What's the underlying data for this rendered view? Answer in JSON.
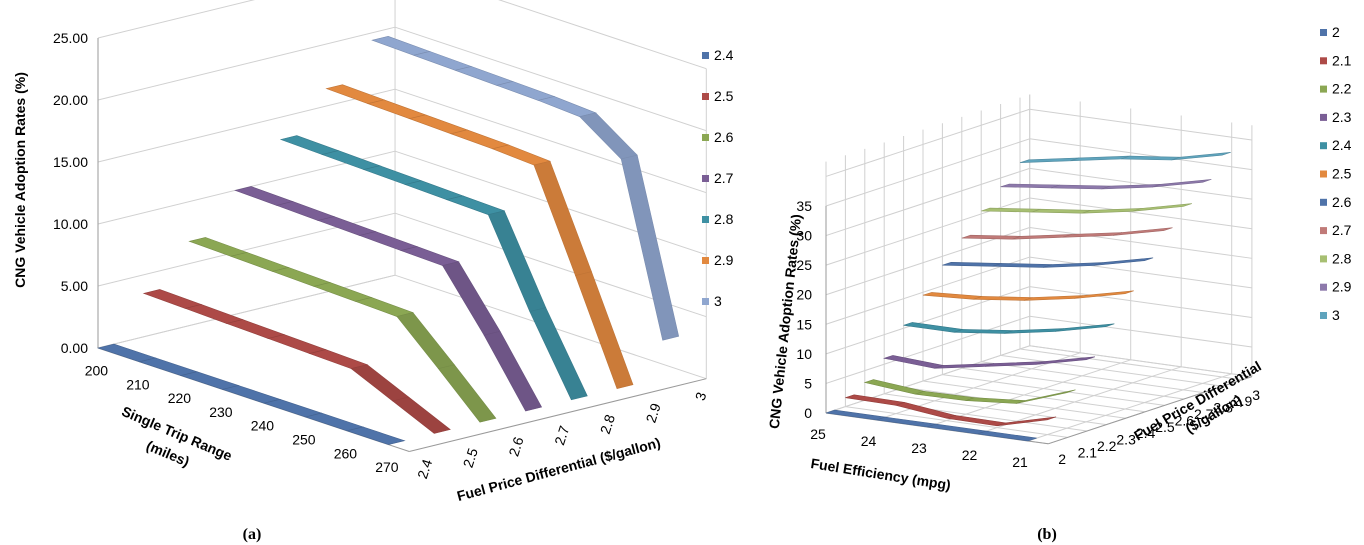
{
  "chart_data": [
    {
      "panel": "(a)",
      "type": "line",
      "subtype": "3d-ribbon",
      "title": "",
      "ylabel": "CNG Vehicle Adoption Rates (%)",
      "xlabel": "Single Trip Range\n(miles)",
      "zlabel": "Fuel Price Differential ($/gallon)",
      "x": [
        200,
        210,
        220,
        230,
        240,
        250,
        260,
        270
      ],
      "x_tick_labels": [
        "200",
        "210",
        "220",
        "230",
        "240",
        "250",
        "260",
        "270"
      ],
      "z_tick_labels": [
        "2.4",
        "2.5",
        "2.6",
        "2.7",
        "2.8",
        "2.9",
        "3"
      ],
      "y_tick_labels": [
        "0.00",
        "5.00",
        "10.00",
        "15.00",
        "20.00",
        "25.00"
      ],
      "ylim": [
        0,
        25
      ],
      "grid": true,
      "legend_position": "right",
      "series": [
        {
          "name": "2.4",
          "color": "#4f73a9",
          "values": [
            0,
            0,
            0,
            0,
            0,
            0,
            0,
            0
          ]
        },
        {
          "name": "2.5",
          "color": "#ad4a47",
          "values": [
            3.5,
            3.4,
            3.3,
            3.2,
            3.1,
            3.0,
            1.5,
            0
          ]
        },
        {
          "name": "2.6",
          "color": "#8ba753",
          "values": [
            6.8,
            6.7,
            6.6,
            6.5,
            6.4,
            6.3,
            3.2,
            0
          ]
        },
        {
          "name": "2.7",
          "color": "#7a5e95",
          "values": [
            10.0,
            9.9,
            9.8,
            9.7,
            9.6,
            9.5,
            5.0,
            0
          ]
        },
        {
          "name": "2.8",
          "color": "#3e90a3",
          "values": [
            13.2,
            13.1,
            13.0,
            12.9,
            12.8,
            12.7,
            6.0,
            0
          ]
        },
        {
          "name": "2.9",
          "color": "#e2893f",
          "values": [
            16.4,
            16.3,
            16.2,
            16.1,
            16.0,
            15.8,
            8.0,
            0
          ]
        },
        {
          "name": "3",
          "color": "#8fa6cf",
          "values": [
            19.4,
            19.3,
            19.2,
            19.1,
            19.0,
            18.8,
            16.5,
            3.0
          ]
        }
      ]
    },
    {
      "panel": "(b)",
      "type": "line",
      "subtype": "3d-ribbon",
      "title": "",
      "ylabel": "CNG Vehicle Adoption Rates (%)",
      "xlabel": "Fuel Efficiency (mpg)",
      "zlabel": "Fuel Price Differential\n($/gallon)",
      "x": [
        25,
        24,
        23,
        22,
        21
      ],
      "x_tick_labels": [
        "25",
        "24",
        "23",
        "22",
        "21"
      ],
      "z_tick_labels": [
        "2",
        "2.1",
        "2.2",
        "2.3",
        "2.4",
        "2.5",
        "2.6",
        "2.7",
        "2.8",
        "2.9",
        "3"
      ],
      "y_tick_labels": [
        "0",
        "5",
        "10",
        "15",
        "20",
        "25",
        "30",
        "35"
      ],
      "ylim": [
        0,
        35
      ],
      "grid": true,
      "legend_position": "right",
      "series": [
        {
          "name": "2",
          "color": "#4f73a9",
          "values": [
            0,
            0,
            0,
            0,
            0
          ]
        },
        {
          "name": "2.1",
          "color": "#ad4a47",
          "values": [
            1.5,
            1.4,
            0.4,
            0.3,
            2.5
          ]
        },
        {
          "name": "2.2",
          "color": "#8ba753",
          "values": [
            3.0,
            2.2,
            2.3,
            3.0,
            6.0
          ]
        },
        {
          "name": "2.3",
          "color": "#7a5e95",
          "values": [
            6.0,
            5.5,
            7.0,
            8.5,
            10.5
          ]
        },
        {
          "name": "2.4",
          "color": "#3e90a3",
          "values": [
            10.5,
            10.5,
            11.5,
            13.0,
            15.0
          ]
        },
        {
          "name": "2.5",
          "color": "#e2893f",
          "values": [
            14.5,
            15.0,
            16.0,
            17.5,
            19.5
          ]
        },
        {
          "name": "2.6",
          "color": "#4f73a9",
          "values": [
            18.5,
            19.5,
            20.5,
            22.0,
            24.0
          ]
        },
        {
          "name": "2.7",
          "color": "#c07a78",
          "values": [
            22.0,
            23.0,
            24.5,
            26.0,
            28.0
          ]
        },
        {
          "name": "2.8",
          "color": "#a7bf72",
          "values": [
            25.5,
            26.5,
            27.5,
            29.0,
            31.0
          ]
        },
        {
          "name": "2.9",
          "color": "#8d79ab",
          "values": [
            28.5,
            29.5,
            30.5,
            32.0,
            34.0
          ]
        },
        {
          "name": "3",
          "color": "#5fa4bd",
          "values": [
            31.5,
            33.0,
            34.5,
            35.5,
            37.5
          ]
        }
      ]
    }
  ],
  "captions": {
    "a": "(a)",
    "b": "(b)"
  }
}
